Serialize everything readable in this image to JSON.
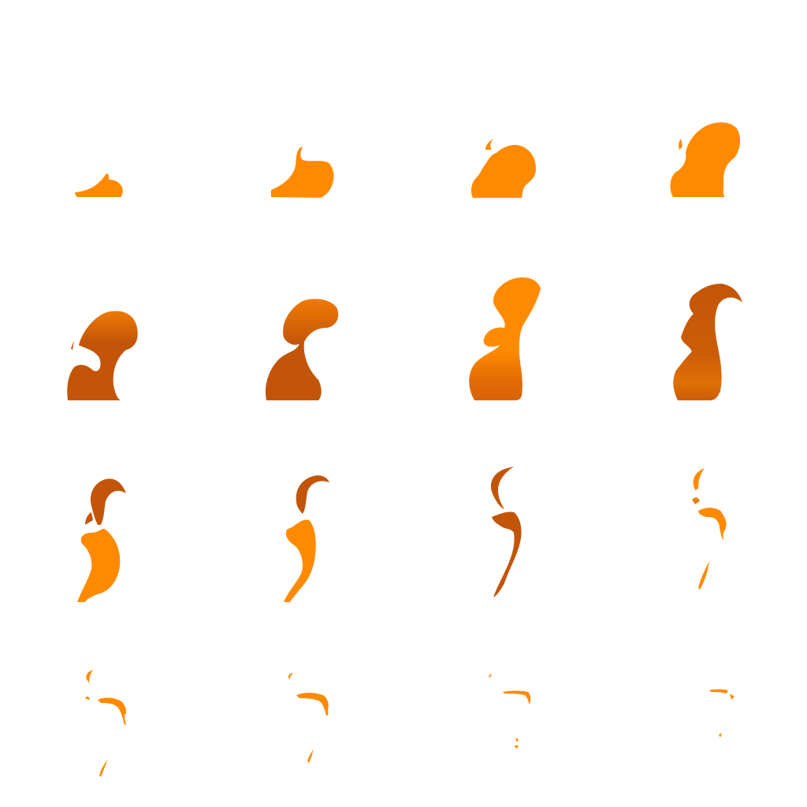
{
  "sheet": {
    "rows": 4,
    "cols": 4,
    "background": "#ffffff",
    "colors": {
      "bright_orange": "#ff8a00",
      "mid_orange": "#ee7a06",
      "dark_orange": "#c35508"
    },
    "frames": [
      {
        "name": "frame-01",
        "phase": "ignite-small"
      },
      {
        "name": "frame-02",
        "phase": "ignite-grow"
      },
      {
        "name": "frame-03",
        "phase": "ignite-grow"
      },
      {
        "name": "frame-04",
        "phase": "flame-tall"
      },
      {
        "name": "frame-05",
        "phase": "flame-dark"
      },
      {
        "name": "frame-06",
        "phase": "flame-dark"
      },
      {
        "name": "frame-07",
        "phase": "flame-bright"
      },
      {
        "name": "frame-08",
        "phase": "flame-dark"
      },
      {
        "name": "frame-09",
        "phase": "break-up"
      },
      {
        "name": "frame-10",
        "phase": "break-up"
      },
      {
        "name": "frame-11",
        "phase": "wisps"
      },
      {
        "name": "frame-12",
        "phase": "wisps"
      },
      {
        "name": "frame-13",
        "phase": "fade"
      },
      {
        "name": "frame-14",
        "phase": "fade"
      },
      {
        "name": "frame-15",
        "phase": "fade"
      },
      {
        "name": "frame-16",
        "phase": "fade"
      }
    ]
  }
}
